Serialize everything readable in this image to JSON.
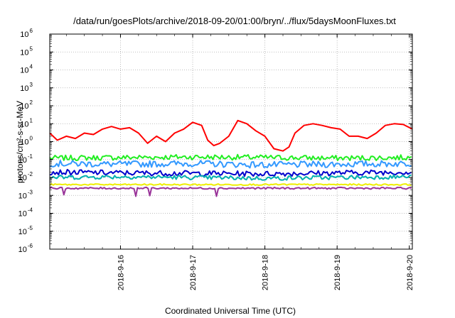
{
  "chart_data": {
    "type": "line",
    "title": "/data/run/goesPlots/archive/2018-09-20/01:00/bryn/../flux/5daysMoonFluxes.txt",
    "xlabel": "Coordinated Universal Time (UTC)",
    "ylabel": "protons/cm²-s-sr-MeV",
    "y_scale": "log",
    "grid": true,
    "legend": "none",
    "xlim": [
      "2018-09-15T00:30",
      "2018-09-20T01:00"
    ],
    "ylim": [
      1e-06,
      1000000.0
    ],
    "x_ticks": [
      {
        "label": "2018-9-16",
        "value": "2018-09-16T00:00"
      },
      {
        "label": "2018-9-17",
        "value": "2018-09-17T00:00"
      },
      {
        "label": "2018-9-18",
        "value": "2018-09-18T00:00"
      },
      {
        "label": "2018-9-19",
        "value": "2018-09-19T00:00"
      },
      {
        "label": "2018-9-20",
        "value": "2018-09-20T00:00"
      }
    ],
    "y_ticks": [
      {
        "exp": "-6",
        "value": 1e-06
      },
      {
        "exp": "-5",
        "value": 1e-05
      },
      {
        "exp": "-4",
        "value": 0.0001
      },
      {
        "exp": "-3",
        "value": 0.001
      },
      {
        "exp": "-2",
        "value": 0.01
      },
      {
        "exp": "-1",
        "value": 0.1
      },
      {
        "exp": "0",
        "value": 1
      },
      {
        "exp": "1",
        "value": 10
      },
      {
        "exp": "2",
        "value": 100
      },
      {
        "exp": "3",
        "value": 1000
      },
      {
        "exp": "4",
        "value": 10000
      },
      {
        "exp": "5",
        "value": 100000
      },
      {
        "exp": "6",
        "value": 1000000
      }
    ],
    "series": [
      {
        "color": "#ff0000",
        "width": 2,
        "x": [
          "2018-09-15T00:30",
          "2018-09-15T03:00",
          "2018-09-15T06:00",
          "2018-09-15T09:00",
          "2018-09-15T12:00",
          "2018-09-15T15:00",
          "2018-09-15T18:00",
          "2018-09-15T21:00",
          "2018-09-16T00:00",
          "2018-09-16T03:00",
          "2018-09-16T06:00",
          "2018-09-16T09:00",
          "2018-09-16T12:00",
          "2018-09-16T15:00",
          "2018-09-16T18:00",
          "2018-09-16T21:00",
          "2018-09-17T00:00",
          "2018-09-17T03:00",
          "2018-09-17T05:00",
          "2018-09-17T07:00",
          "2018-09-17T09:00",
          "2018-09-17T12:00",
          "2018-09-17T15:00",
          "2018-09-17T18:00",
          "2018-09-17T21:00",
          "2018-09-18T00:00",
          "2018-09-18T03:00",
          "2018-09-18T06:00",
          "2018-09-18T08:00",
          "2018-09-18T10:00",
          "2018-09-18T13:00",
          "2018-09-18T16:00",
          "2018-09-18T19:00",
          "2018-09-18T22:00",
          "2018-09-19T01:00",
          "2018-09-19T04:00",
          "2018-09-19T07:00",
          "2018-09-19T10:00",
          "2018-09-19T13:00",
          "2018-09-19T16:00",
          "2018-09-19T19:00",
          "2018-09-19T22:00",
          "2018-09-20T01:00"
        ],
        "values": [
          3,
          1.2,
          2,
          1.5,
          3,
          2.5,
          5,
          7,
          5,
          6,
          3,
          0.8,
          2,
          1,
          3,
          5,
          12,
          8,
          1.2,
          0.6,
          0.8,
          2,
          15,
          10,
          4,
          2,
          0.4,
          0.3,
          0.5,
          3,
          8,
          10,
          8,
          6,
          5,
          2,
          2,
          1.5,
          3,
          8,
          10,
          9,
          5
        ]
      },
      {
        "color": "#22ee22",
        "width": 2,
        "noise": 0.15,
        "dips": [],
        "x": [
          "2018-09-15T00:30",
          "2018-09-16T00:00",
          "2018-09-17T00:00",
          "2018-09-18T00:00",
          "2018-09-19T00:00",
          "2018-09-20T01:00"
        ],
        "values": [
          0.12,
          0.13,
          0.14,
          0.13,
          0.12,
          0.13
        ]
      },
      {
        "color": "#3399ff",
        "width": 2,
        "noise": 0.18,
        "dips": [],
        "x": [
          "2018-09-15T00:30",
          "2018-09-16T00:00",
          "2018-09-17T00:00",
          "2018-09-18T00:00",
          "2018-09-19T00:00",
          "2018-09-20T01:00"
        ],
        "values": [
          0.06,
          0.055,
          0.06,
          0.05,
          0.055,
          0.06
        ]
      },
      {
        "color": "#0000cc",
        "width": 2,
        "noise": 0.15,
        "dips": [],
        "x": [
          "2018-09-15T00:30",
          "2018-09-16T00:00",
          "2018-09-17T00:00",
          "2018-09-18T00:00",
          "2018-09-19T00:00",
          "2018-09-20T01:00"
        ],
        "values": [
          0.02,
          0.018,
          0.017,
          0.016,
          0.018,
          0.02
        ]
      },
      {
        "color": "#00b0b0",
        "width": 2,
        "noise": 0.12,
        "dips": [],
        "x": [
          "2018-09-15T00:30",
          "2018-09-16T00:00",
          "2018-09-17T00:00",
          "2018-09-18T00:00",
          "2018-09-19T00:00",
          "2018-09-20T01:00"
        ],
        "values": [
          0.01,
          0.011,
          0.01,
          0.009,
          0.01,
          0.011
        ]
      },
      {
        "color": "#eeee00",
        "width": 2,
        "noise": 0.04,
        "dips": [],
        "x": [
          "2018-09-15T00:30",
          "2018-09-20T01:00"
        ],
        "values": [
          0.004,
          0.004
        ]
      },
      {
        "color": "#993399",
        "width": 2,
        "noise": 0.05,
        "dips": [
          "2018-09-15T05:00",
          "2018-09-16T05:00",
          "2018-09-16T10:00",
          "2018-09-17T08:00"
        ],
        "x": [
          "2018-09-15T00:30",
          "2018-09-20T01:00"
        ],
        "values": [
          0.0025,
          0.0025
        ]
      }
    ]
  }
}
